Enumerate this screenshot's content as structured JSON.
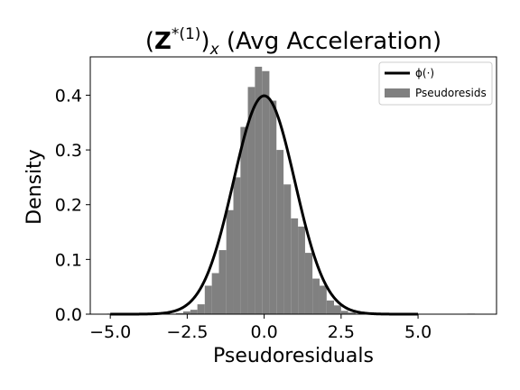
{
  "chart_data": {
    "type": "bar",
    "title": "(Z*(1))x (Avg Acceleration)",
    "title_parts": {
      "open": "(",
      "bold": "Z",
      "sup": "*(1)",
      "close": ")",
      "sub": "x",
      "rest": " (Avg Acceleration)"
    },
    "xlabel": "Pseudoresiduals",
    "ylabel": "Density",
    "xlim": [
      -5.65,
      7.55
    ],
    "ylim": [
      0,
      0.47
    ],
    "xticks": [
      -5.0,
      -2.5,
      0.0,
      2.5,
      5.0
    ],
    "xtick_labels": [
      "−5.0",
      "−2.5",
      "0.0",
      "2.5",
      "5.0"
    ],
    "yticks": [
      0.0,
      0.1,
      0.2,
      0.3,
      0.4
    ],
    "ytick_labels": [
      "0.0",
      "0.1",
      "0.2",
      "0.3",
      "0.4"
    ],
    "legend": {
      "placement": "top-right",
      "entries": [
        {
          "label": "ϕ(·)",
          "kind": "line",
          "color": "#000000"
        },
        {
          "label": "Pseudoresids",
          "kind": "patch",
          "color": "#808080"
        }
      ]
    },
    "histogram": {
      "name": "Pseudoresids",
      "color": "#808080",
      "bins": [
        {
          "x0": -5.1,
          "x1": -4.85,
          "density": 0.001
        },
        {
          "x0": -2.87,
          "x1": -2.63,
          "density": 0.002
        },
        {
          "x0": -2.63,
          "x1": -2.4,
          "density": 0.005
        },
        {
          "x0": -2.4,
          "x1": -2.17,
          "density": 0.008
        },
        {
          "x0": -2.17,
          "x1": -1.93,
          "density": 0.018
        },
        {
          "x0": -1.93,
          "x1": -1.7,
          "density": 0.052
        },
        {
          "x0": -1.7,
          "x1": -1.47,
          "density": 0.075
        },
        {
          "x0": -1.47,
          "x1": -1.23,
          "density": 0.117
        },
        {
          "x0": -1.23,
          "x1": -1.0,
          "density": 0.19
        },
        {
          "x0": -1.0,
          "x1": -0.77,
          "density": 0.25
        },
        {
          "x0": -0.77,
          "x1": -0.53,
          "density": 0.342
        },
        {
          "x0": -0.53,
          "x1": -0.3,
          "density": 0.415
        },
        {
          "x0": -0.3,
          "x1": -0.07,
          "density": 0.452
        },
        {
          "x0": -0.07,
          "x1": 0.17,
          "density": 0.444
        },
        {
          "x0": 0.17,
          "x1": 0.4,
          "density": 0.39
        },
        {
          "x0": 0.4,
          "x1": 0.63,
          "density": 0.3
        },
        {
          "x0": 0.63,
          "x1": 0.87,
          "density": 0.237
        },
        {
          "x0": 0.87,
          "x1": 1.1,
          "density": 0.175
        },
        {
          "x0": 1.1,
          "x1": 1.33,
          "density": 0.16
        },
        {
          "x0": 1.33,
          "x1": 1.57,
          "density": 0.112
        },
        {
          "x0": 1.57,
          "x1": 1.8,
          "density": 0.065
        },
        {
          "x0": 1.8,
          "x1": 2.03,
          "density": 0.052
        },
        {
          "x0": 2.03,
          "x1": 2.27,
          "density": 0.025
        },
        {
          "x0": 2.27,
          "x1": 2.5,
          "density": 0.016
        },
        {
          "x0": 2.5,
          "x1": 2.73,
          "density": 0.006
        },
        {
          "x0": 2.73,
          "x1": 2.97,
          "density": 0.003
        },
        {
          "x0": 6.6,
          "x1": 6.85,
          "density": 0.001
        }
      ]
    },
    "curve": {
      "name": "ϕ(·)",
      "function": "standard normal pdf",
      "color": "#000000",
      "x_range": [
        -5.0,
        5.0
      ]
    },
    "grid": false
  }
}
